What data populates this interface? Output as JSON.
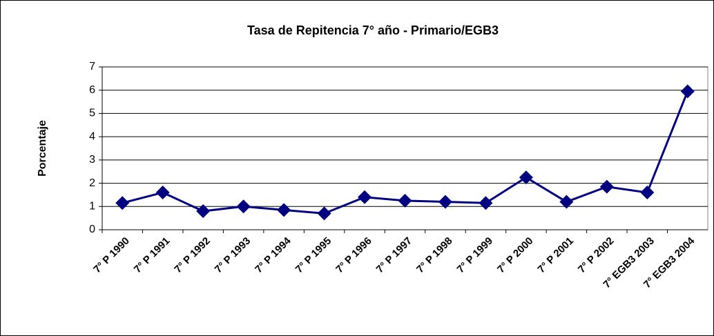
{
  "chart_data": {
    "type": "line",
    "title": "Tasa de Repitencia 7° año - Primario/EGB3",
    "y_label": "Porcentaje",
    "categories": [
      "7° P 1990",
      "7° P 1991",
      "7° P 1992",
      "7° P 1993",
      "7° P 1994",
      "7° P 1995",
      "7° P 1996",
      "7° P 1997",
      "7° P 1998",
      "7° P 1999",
      "7° P 2000",
      "7° P 2001",
      "7° P 2002",
      "7° EGB3 2003",
      "7° EGB3 2004"
    ],
    "values": [
      1.15,
      1.6,
      0.8,
      1.0,
      0.85,
      0.7,
      1.4,
      1.25,
      1.2,
      1.15,
      2.25,
      1.2,
      1.85,
      1.6,
      5.95
    ],
    "color": "#000080",
    "ylim": [
      0,
      7
    ],
    "yticks": [
      0,
      1,
      2,
      3,
      4,
      5,
      6,
      7
    ],
    "grid": true
  }
}
